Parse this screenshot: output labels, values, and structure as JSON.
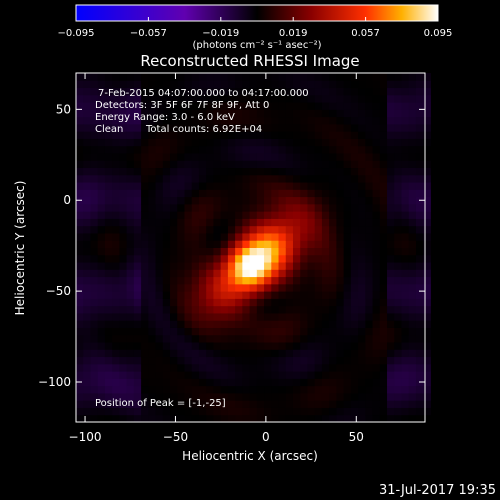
{
  "chart_data": {
    "type": "heatmap",
    "title": "Reconstructed RHESSI Image",
    "xlabel": "Heliocentric X (arcsec)",
    "ylabel": "Heliocentric Y (arcsec)",
    "xlim": [
      -105,
      88
    ],
    "ylim": [
      -122,
      70
    ],
    "x_ticks": [
      -100,
      -50,
      0,
      50
    ],
    "y_ticks": [
      50,
      0,
      -50,
      -100
    ],
    "colorbar": {
      "range": [
        -0.095,
        0.095
      ],
      "ticks": [
        "-0.095",
        "-0.057",
        "-0.019",
        "0.019",
        "0.057",
        "0.095"
      ],
      "units": "(photons cm⁻² s⁻¹ asec⁻²)",
      "colormap": [
        "#0000ff",
        "#6000b0",
        "#000000",
        "#8a0000",
        "#ff3000",
        "#ffb000",
        "#ffffff"
      ]
    },
    "annotations": {
      "time_range": "7-Feb-2015 04:07:00.000 to 04:17:00.000",
      "detectors": "Detectors: 3F 5F 6F 7F 8F 9F, Att 0",
      "energy": "Energy Range: 3.0 - 6.0 keV",
      "clean": "Clean",
      "counts": "Total counts: 6.92E+04",
      "peak": "Position of Peak = [-1,-25]"
    },
    "peak_position": [
      -1,
      -25
    ],
    "source": {
      "center": [
        -6,
        -34
      ],
      "major_sigma": 21,
      "minor_sigma": 11,
      "angle_deg": 42,
      "peak_value": 0.095
    },
    "footer_date": "31-Jul-2017 19:35"
  }
}
